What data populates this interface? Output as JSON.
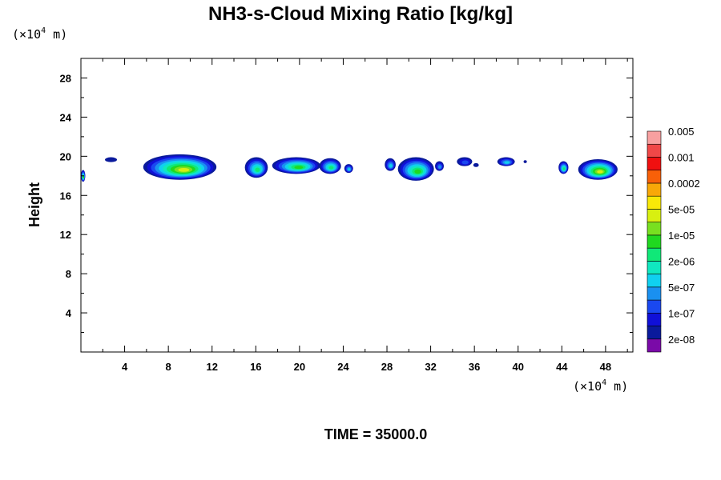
{
  "chart_data": {
    "type": "heatmap",
    "title": "NH3-s-Cloud Mixing Ratio [kg/kg]",
    "ylabel": "Height",
    "x_unit": {
      "prefix": "(×10",
      "exp": "4",
      "suffix": " m)"
    },
    "y_unit": {
      "prefix": "(×10",
      "exp": "4",
      "suffix": " m)"
    },
    "xlim": [
      0,
      50.5
    ],
    "ylim": [
      0,
      30
    ],
    "x_ticks": [
      "4",
      "8",
      "12",
      "16",
      "20",
      "24",
      "28",
      "32",
      "36",
      "40",
      "44",
      "48"
    ],
    "y_ticks": [
      "4",
      "8",
      "12",
      "16",
      "20",
      "24",
      "28"
    ],
    "colorbar": {
      "colors": [
        "#7a0aa8",
        "#0a1a9c",
        "#1010d8",
        "#1a48f0",
        "#1a90f0",
        "#10d0f0",
        "#10e8c0",
        "#10e878",
        "#20d820",
        "#78e020",
        "#d8f010",
        "#f8e808",
        "#f8a808",
        "#f86008",
        "#f01010",
        "#f04848",
        "#f8a0a0"
      ],
      "labels": [
        "2e-08",
        "1e-07",
        "5e-07",
        "2e-06",
        "1e-05",
        "5e-05",
        "0.0002",
        "0.001",
        "0.005"
      ]
    },
    "clouds": [
      {
        "x0": 0.0,
        "x1": 0.4,
        "y0": 17.4,
        "y1": 18.6,
        "max_level": 8
      },
      {
        "x0": 2.2,
        "x1": 3.3,
        "y0": 19.4,
        "y1": 19.9,
        "max_level": 1
      },
      {
        "x0": 5.7,
        "x1": 12.4,
        "y0": 17.6,
        "y1": 20.2,
        "max_level": 10
      },
      {
        "x0": 15.0,
        "x1": 17.1,
        "y0": 17.8,
        "y1": 19.9,
        "max_level": 7
      },
      {
        "x0": 17.5,
        "x1": 21.9,
        "y0": 18.2,
        "y1": 19.9,
        "max_level": 8
      },
      {
        "x0": 21.8,
        "x1": 23.8,
        "y0": 18.2,
        "y1": 19.8,
        "max_level": 7
      },
      {
        "x0": 24.1,
        "x1": 24.9,
        "y0": 18.3,
        "y1": 19.2,
        "max_level": 5
      },
      {
        "x0": 27.8,
        "x1": 28.8,
        "y0": 18.5,
        "y1": 19.8,
        "max_level": 5
      },
      {
        "x0": 29.0,
        "x1": 32.3,
        "y0": 17.5,
        "y1": 19.9,
        "max_level": 8
      },
      {
        "x0": 32.4,
        "x1": 33.2,
        "y0": 18.5,
        "y1": 19.5,
        "max_level": 4
      },
      {
        "x0": 34.4,
        "x1": 35.8,
        "y0": 19.0,
        "y1": 19.9,
        "max_level": 3
      },
      {
        "x0": 35.9,
        "x1": 36.4,
        "y0": 18.9,
        "y1": 19.3,
        "max_level": 1
      },
      {
        "x0": 38.1,
        "x1": 39.7,
        "y0": 19.0,
        "y1": 19.9,
        "max_level": 5
      },
      {
        "x0": 40.5,
        "x1": 40.8,
        "y0": 19.3,
        "y1": 19.6,
        "max_level": 1
      },
      {
        "x0": 43.7,
        "x1": 44.6,
        "y0": 18.2,
        "y1": 19.5,
        "max_level": 7
      },
      {
        "x0": 45.5,
        "x1": 49.1,
        "y0": 17.6,
        "y1": 19.7,
        "max_level": 10
      }
    ]
  },
  "footer": {
    "time_label": "TIME = 35000.0"
  }
}
